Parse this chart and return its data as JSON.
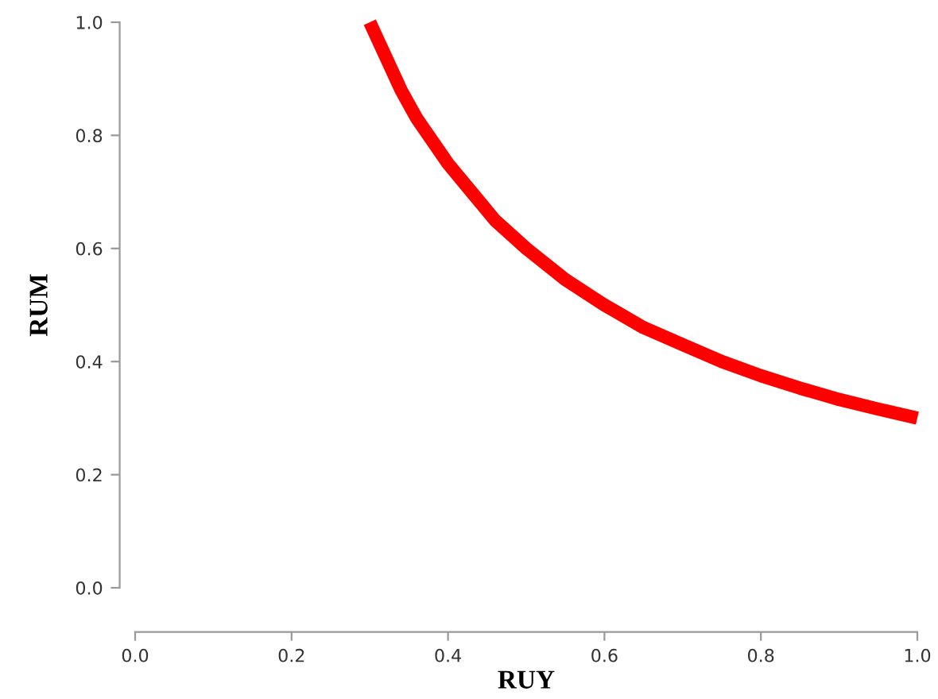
{
  "chart_data": {
    "type": "line",
    "xlabel": "RUY",
    "ylabel": "RUM",
    "x": [
      0.3,
      0.32,
      0.34,
      0.36,
      0.38,
      0.4,
      0.43,
      0.46,
      0.5,
      0.55,
      0.6,
      0.65,
      0.7,
      0.75,
      0.8,
      0.85,
      0.9,
      0.95,
      1.0
    ],
    "series": [
      {
        "color": "#ff0000",
        "values": [
          1.0,
          0.94,
          0.88,
          0.83,
          0.79,
          0.75,
          0.7,
          0.65,
          0.6,
          0.545,
          0.5,
          0.46,
          0.43,
          0.4,
          0.375,
          0.353,
          0.333,
          0.316,
          0.3
        ]
      }
    ],
    "xlim": [
      0.0,
      1.0
    ],
    "ylim": [
      0.0,
      1.0
    ],
    "xticks": [
      {
        "value": 0.0,
        "label": "0.0"
      },
      0.2,
      0.4,
      0.6,
      0.8,
      {
        "value": 1.0,
        "label": "1.0"
      }
    ],
    "yticks": [
      {
        "value": 0.0,
        "label": "0.0"
      },
      0.2,
      0.4,
      0.6,
      0.8,
      {
        "value": 1.0,
        "label": "1.0"
      }
    ],
    "grid": false,
    "legend": false,
    "marker": "none",
    "line_style": "solid"
  }
}
